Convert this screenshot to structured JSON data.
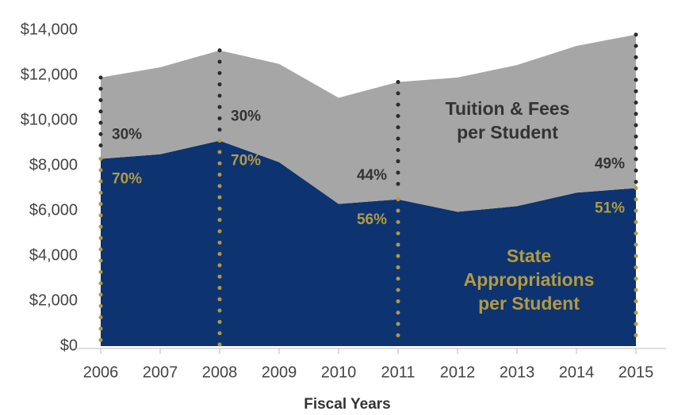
{
  "chart_data": {
    "type": "stacked_area",
    "x_label": "Fiscal Years",
    "x": [
      2006,
      2007,
      2008,
      2009,
      2010,
      2011,
      2012,
      2013,
      2014,
      2015
    ],
    "xlim": [
      2006,
      2015
    ],
    "xticks": [
      2006,
      2007,
      2008,
      2009,
      2010,
      2011,
      2012,
      2013,
      2014,
      2015
    ],
    "ylim": [
      0,
      14000
    ],
    "yticks": [
      {
        "value": 0,
        "label": "$0"
      },
      {
        "value": 2000,
        "label": "$2,000"
      },
      {
        "value": 4000,
        "label": "$4,000"
      },
      {
        "value": 6000,
        "label": "$6,000"
      },
      {
        "value": 8000,
        "label": "$8,000"
      },
      {
        "value": 10000,
        "label": "$10,000"
      },
      {
        "value": 12000,
        "label": "$12,000"
      },
      {
        "value": 14000,
        "label": "$14,000"
      }
    ],
    "series": [
      {
        "name": "State Appropriations per Student",
        "color": "#0d3470",
        "label_color": "#b39a42",
        "values": [
          8300,
          8500,
          9100,
          8150,
          6300,
          6500,
          5950,
          6200,
          6800,
          7000
        ]
      },
      {
        "name": "Tuition & Fees per Student",
        "color": "#a6a6a6",
        "label_color": "#333333",
        "values": [
          3600,
          3850,
          4000,
          4350,
          4700,
          5200,
          5950,
          6250,
          6500,
          6800
        ]
      }
    ],
    "annotations": [
      {
        "x": 2006,
        "labels": [
          "70%",
          "30%"
        ]
      },
      {
        "x": 2008,
        "labels": [
          "70%",
          "30%"
        ]
      },
      {
        "x": 2011,
        "labels": [
          "56%",
          "44%"
        ]
      },
      {
        "x": 2015,
        "labels": [
          "51%",
          "49%"
        ]
      }
    ]
  }
}
